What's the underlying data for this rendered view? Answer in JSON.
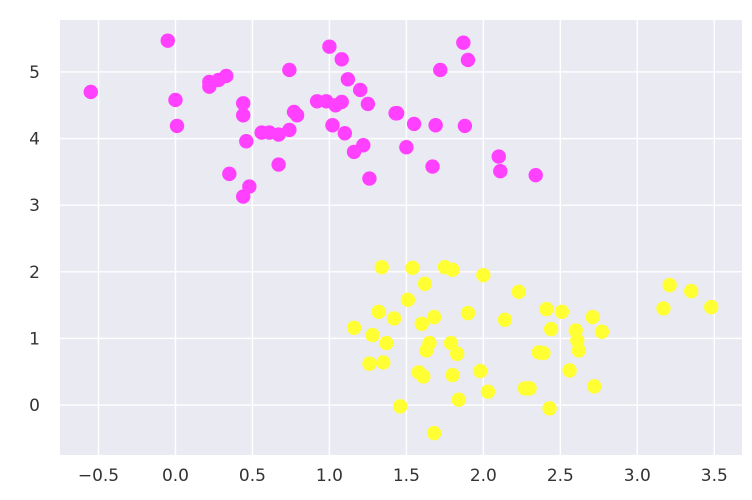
{
  "chart_data": {
    "type": "scatter",
    "title": "",
    "xlabel": "",
    "ylabel": "",
    "xlim": [
      -0.75,
      3.68
    ],
    "ylim": [
      -0.75,
      5.78
    ],
    "grid": true,
    "background": "#eaeaf2",
    "xticks": [
      -0.5,
      0.0,
      0.5,
      1.0,
      1.5,
      2.0,
      2.5,
      3.0,
      3.5
    ],
    "xtick_labels": [
      "−0.5",
      "0.0",
      "0.5",
      "1.0",
      "1.5",
      "2.0",
      "2.5",
      "3.0",
      "3.5"
    ],
    "yticks": [
      0,
      1,
      2,
      3,
      4,
      5
    ],
    "ytick_labels": [
      "0",
      "1",
      "2",
      "3",
      "4",
      "5"
    ],
    "series": [
      {
        "color": "#ff40ff",
        "points": [
          [
            -0.55,
            4.7
          ],
          [
            -0.05,
            5.47
          ],
          [
            0.0,
            4.58
          ],
          [
            0.01,
            4.19
          ],
          [
            0.22,
            4.85
          ],
          [
            0.22,
            4.78
          ],
          [
            0.28,
            4.88
          ],
          [
            0.33,
            4.94
          ],
          [
            0.35,
            3.47
          ],
          [
            0.44,
            4.53
          ],
          [
            0.44,
            4.35
          ],
          [
            0.46,
            3.96
          ],
          [
            0.44,
            3.13
          ],
          [
            0.48,
            3.28
          ],
          [
            0.56,
            4.09
          ],
          [
            0.61,
            4.09
          ],
          [
            0.67,
            4.06
          ],
          [
            0.67,
            3.61
          ],
          [
            0.74,
            5.03
          ],
          [
            0.74,
            4.13
          ],
          [
            0.77,
            4.4
          ],
          [
            0.79,
            4.35
          ],
          [
            0.92,
            4.56
          ],
          [
            0.98,
            4.56
          ],
          [
            1.0,
            5.38
          ],
          [
            1.02,
            4.2
          ],
          [
            1.04,
            4.5
          ],
          [
            1.08,
            5.19
          ],
          [
            1.08,
            4.55
          ],
          [
            1.1,
            4.08
          ],
          [
            1.12,
            4.89
          ],
          [
            1.16,
            3.8
          ],
          [
            1.2,
            4.73
          ],
          [
            1.22,
            3.9
          ],
          [
            1.25,
            4.52
          ],
          [
            1.26,
            3.4
          ],
          [
            1.43,
            4.38
          ],
          [
            1.44,
            4.38
          ],
          [
            1.5,
            3.87
          ],
          [
            1.55,
            4.22
          ],
          [
            1.67,
            3.58
          ],
          [
            1.69,
            4.2
          ],
          [
            1.72,
            5.03
          ],
          [
            1.87,
            5.44
          ],
          [
            1.88,
            4.19
          ],
          [
            1.9,
            5.18
          ],
          [
            2.1,
            3.73
          ],
          [
            2.11,
            3.51
          ],
          [
            2.34,
            3.45
          ]
        ]
      },
      {
        "color": "#ffff33",
        "points": [
          [
            1.16,
            1.16
          ],
          [
            1.26,
            0.62
          ],
          [
            1.28,
            1.05
          ],
          [
            1.32,
            1.4
          ],
          [
            1.34,
            2.07
          ],
          [
            1.35,
            0.64
          ],
          [
            1.37,
            0.93
          ],
          [
            1.42,
            1.3
          ],
          [
            1.46,
            -0.02
          ],
          [
            1.51,
            1.58
          ],
          [
            1.54,
            2.06
          ],
          [
            1.58,
            0.49
          ],
          [
            1.6,
            1.22
          ],
          [
            1.61,
            0.43
          ],
          [
            1.62,
            1.82
          ],
          [
            1.63,
            0.82
          ],
          [
            1.65,
            0.93
          ],
          [
            1.68,
            1.32
          ],
          [
            1.68,
            -0.42
          ],
          [
            1.75,
            2.07
          ],
          [
            1.79,
            0.93
          ],
          [
            1.8,
            2.03
          ],
          [
            1.8,
            0.45
          ],
          [
            1.83,
            0.77
          ],
          [
            1.84,
            0.08
          ],
          [
            1.9,
            1.38
          ],
          [
            1.98,
            0.51
          ],
          [
            2.0,
            1.95
          ],
          [
            2.03,
            0.2
          ],
          [
            2.14,
            1.28
          ],
          [
            2.23,
            1.7
          ],
          [
            2.27,
            0.25
          ],
          [
            2.3,
            0.25
          ],
          [
            2.36,
            0.79
          ],
          [
            2.39,
            0.78
          ],
          [
            2.41,
            1.44
          ],
          [
            2.43,
            -0.05
          ],
          [
            2.44,
            1.14
          ],
          [
            2.51,
            1.4
          ],
          [
            2.56,
            0.52
          ],
          [
            2.6,
            1.12
          ],
          [
            2.61,
            0.97
          ],
          [
            2.62,
            0.82
          ],
          [
            2.71,
            1.32
          ],
          [
            2.72,
            0.28
          ],
          [
            2.77,
            1.1
          ],
          [
            3.17,
            1.45
          ],
          [
            3.21,
            1.8
          ],
          [
            3.35,
            1.71
          ],
          [
            3.48,
            1.47
          ]
        ]
      }
    ]
  }
}
